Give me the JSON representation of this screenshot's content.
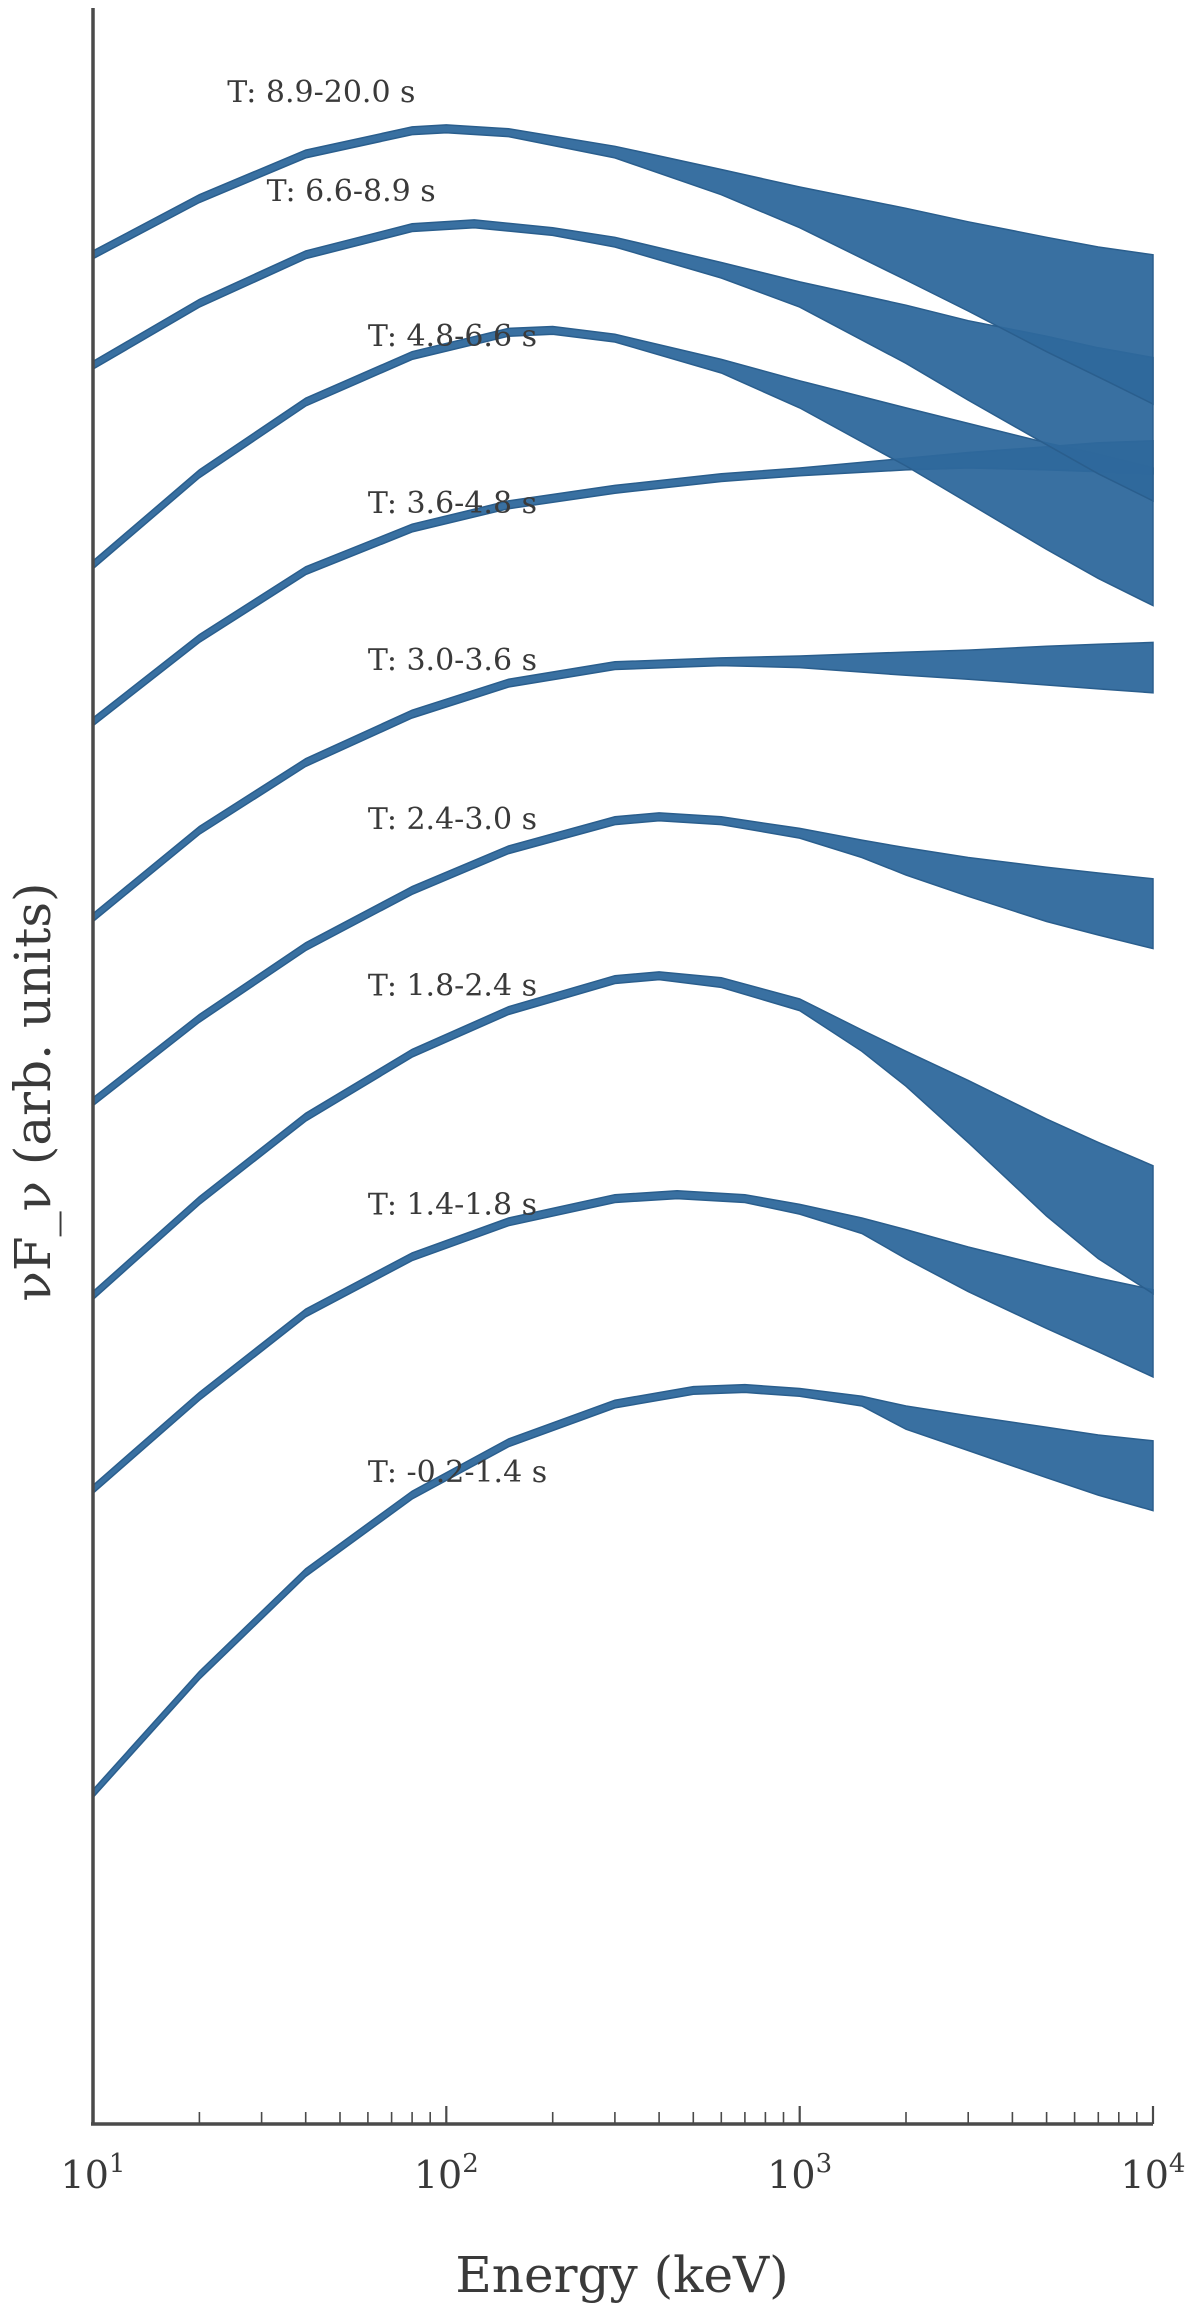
{
  "chart_data": {
    "type": "area",
    "title": "",
    "xlabel": "Energy (keV)",
    "ylabel": "νF_ν (arb. units)",
    "xscale": "log",
    "xlim": [
      10,
      10000
    ],
    "x_ticks": [
      {
        "base": "10",
        "exp": "1"
      },
      {
        "base": "10",
        "exp": "2"
      },
      {
        "base": "10",
        "exp": "3"
      },
      {
        "base": "10",
        "exp": "4"
      }
    ],
    "y_ticks_shown": false,
    "grid": false,
    "band_color": "#2e689c",
    "series": [
      {
        "name": "T: -0.2-1.4 s",
        "label_x": 60,
        "label_y": 0.288,
        "x": [
          10,
          20,
          40,
          80,
          150,
          300,
          500,
          700,
          1000,
          1500,
          2000,
          3000,
          5000,
          7000,
          10000
        ],
        "upper": [
          0.124,
          0.185,
          0.238,
          0.278,
          0.305,
          0.325,
          0.332,
          0.333,
          0.331,
          0.327,
          0.322,
          0.317,
          0.311,
          0.307,
          0.304
        ],
        "lower": [
          0.12,
          0.181,
          0.234,
          0.274,
          0.301,
          0.321,
          0.328,
          0.329,
          0.327,
          0.322,
          0.31,
          0.299,
          0.285,
          0.276,
          0.268
        ]
      },
      {
        "name": "T: 1.4-1.8 s",
        "label_x": 60,
        "label_y": 0.426,
        "x": [
          10,
          20,
          40,
          80,
          150,
          300,
          450,
          700,
          1000,
          1500,
          2000,
          3000,
          5000,
          7000,
          10000
        ],
        "upper": [
          0.281,
          0.329,
          0.372,
          0.401,
          0.419,
          0.431,
          0.433,
          0.431,
          0.426,
          0.419,
          0.413,
          0.404,
          0.394,
          0.388,
          0.382
        ],
        "lower": [
          0.277,
          0.325,
          0.368,
          0.397,
          0.415,
          0.427,
          0.429,
          0.427,
          0.421,
          0.411,
          0.398,
          0.381,
          0.362,
          0.35,
          0.337
        ]
      },
      {
        "name": "T: 1.8-2.4 s",
        "label_x": 60,
        "label_y": 0.539,
        "x": [
          10,
          20,
          40,
          80,
          150,
          300,
          400,
          600,
          1000,
          1500,
          2000,
          3000,
          5000,
          7000,
          10000
        ],
        "upper": [
          0.381,
          0.43,
          0.473,
          0.506,
          0.528,
          0.544,
          0.546,
          0.543,
          0.532,
          0.516,
          0.505,
          0.49,
          0.47,
          0.458,
          0.446
        ],
        "lower": [
          0.377,
          0.426,
          0.469,
          0.502,
          0.524,
          0.54,
          0.542,
          0.538,
          0.526,
          0.505,
          0.487,
          0.458,
          0.42,
          0.398,
          0.38
        ]
      },
      {
        "name": "T: 2.4-3.0 s",
        "label_x": 60,
        "label_y": 0.625,
        "x": [
          10,
          20,
          40,
          80,
          150,
          300,
          400,
          600,
          1000,
          1500,
          2000,
          3000,
          5000,
          7000,
          10000
        ],
        "upper": [
          0.481,
          0.524,
          0.561,
          0.59,
          0.611,
          0.626,
          0.628,
          0.626,
          0.62,
          0.614,
          0.61,
          0.605,
          0.6,
          0.597,
          0.594
        ],
        "lower": [
          0.477,
          0.52,
          0.557,
          0.586,
          0.607,
          0.622,
          0.624,
          0.622,
          0.615,
          0.605,
          0.596,
          0.585,
          0.572,
          0.565,
          0.558
        ]
      },
      {
        "name": "T: 3.0-3.6 s",
        "label_x": 60,
        "label_y": 0.707,
        "x": [
          10,
          20,
          40,
          80,
          150,
          300,
          600,
          1000,
          2000,
          3000,
          5000,
          7000,
          10000
        ],
        "upper": [
          0.576,
          0.621,
          0.656,
          0.681,
          0.697,
          0.706,
          0.708,
          0.709,
          0.711,
          0.712,
          0.714,
          0.715,
          0.716
        ],
        "lower": [
          0.572,
          0.617,
          0.652,
          0.677,
          0.693,
          0.702,
          0.704,
          0.703,
          0.699,
          0.697,
          0.694,
          0.692,
          0.69
        ]
      },
      {
        "name": "T: 3.6-4.8 s",
        "label_x": 60,
        "label_y": 0.788,
        "x": [
          10,
          20,
          40,
          80,
          150,
          300,
          600,
          1000,
          2000,
          3000,
          5000,
          7000,
          10000
        ],
        "upper": [
          0.677,
          0.72,
          0.755,
          0.777,
          0.789,
          0.797,
          0.803,
          0.806,
          0.811,
          0.814,
          0.817,
          0.819,
          0.82
        ],
        "lower": [
          0.673,
          0.716,
          0.751,
          0.773,
          0.785,
          0.793,
          0.799,
          0.802,
          0.805,
          0.806,
          0.805,
          0.804,
          0.803
        ]
      },
      {
        "name": "T: 4.8-6.6 s",
        "label_x": 60,
        "label_y": 0.874,
        "x": [
          10,
          20,
          40,
          80,
          150,
          200,
          300,
          600,
          1000,
          2000,
          3000,
          5000,
          7000,
          10000
        ],
        "upper": [
          0.758,
          0.805,
          0.842,
          0.866,
          0.878,
          0.879,
          0.875,
          0.862,
          0.851,
          0.837,
          0.829,
          0.819,
          0.813,
          0.806
        ],
        "lower": [
          0.754,
          0.801,
          0.838,
          0.862,
          0.874,
          0.875,
          0.871,
          0.855,
          0.837,
          0.807,
          0.788,
          0.764,
          0.749,
          0.735
        ]
      },
      {
        "name": "T: 6.6-8.9 s",
        "label_x": 31,
        "label_y": 0.949,
        "x": [
          10,
          20,
          40,
          80,
          120,
          200,
          300,
          600,
          1000,
          2000,
          3000,
          5000,
          7000,
          10000
        ],
        "upper": [
          0.861,
          0.893,
          0.918,
          0.932,
          0.934,
          0.93,
          0.925,
          0.912,
          0.902,
          0.89,
          0.882,
          0.874,
          0.868,
          0.863
        ],
        "lower": [
          0.857,
          0.889,
          0.914,
          0.928,
          0.93,
          0.926,
          0.92,
          0.904,
          0.889,
          0.86,
          0.841,
          0.818,
          0.803,
          0.789
        ]
      },
      {
        "name": "T: 8.9-20.0 s",
        "label_x": 24,
        "label_y": 1.0,
        "x": [
          10,
          20,
          40,
          80,
          100,
          150,
          300,
          600,
          1000,
          2000,
          3000,
          5000,
          7000,
          10000
        ],
        "upper": [
          0.918,
          0.947,
          0.97,
          0.982,
          0.983,
          0.981,
          0.972,
          0.96,
          0.951,
          0.94,
          0.933,
          0.925,
          0.92,
          0.916
        ],
        "lower": [
          0.914,
          0.943,
          0.966,
          0.978,
          0.979,
          0.977,
          0.966,
          0.947,
          0.93,
          0.903,
          0.887,
          0.866,
          0.853,
          0.839
        ]
      }
    ]
  }
}
